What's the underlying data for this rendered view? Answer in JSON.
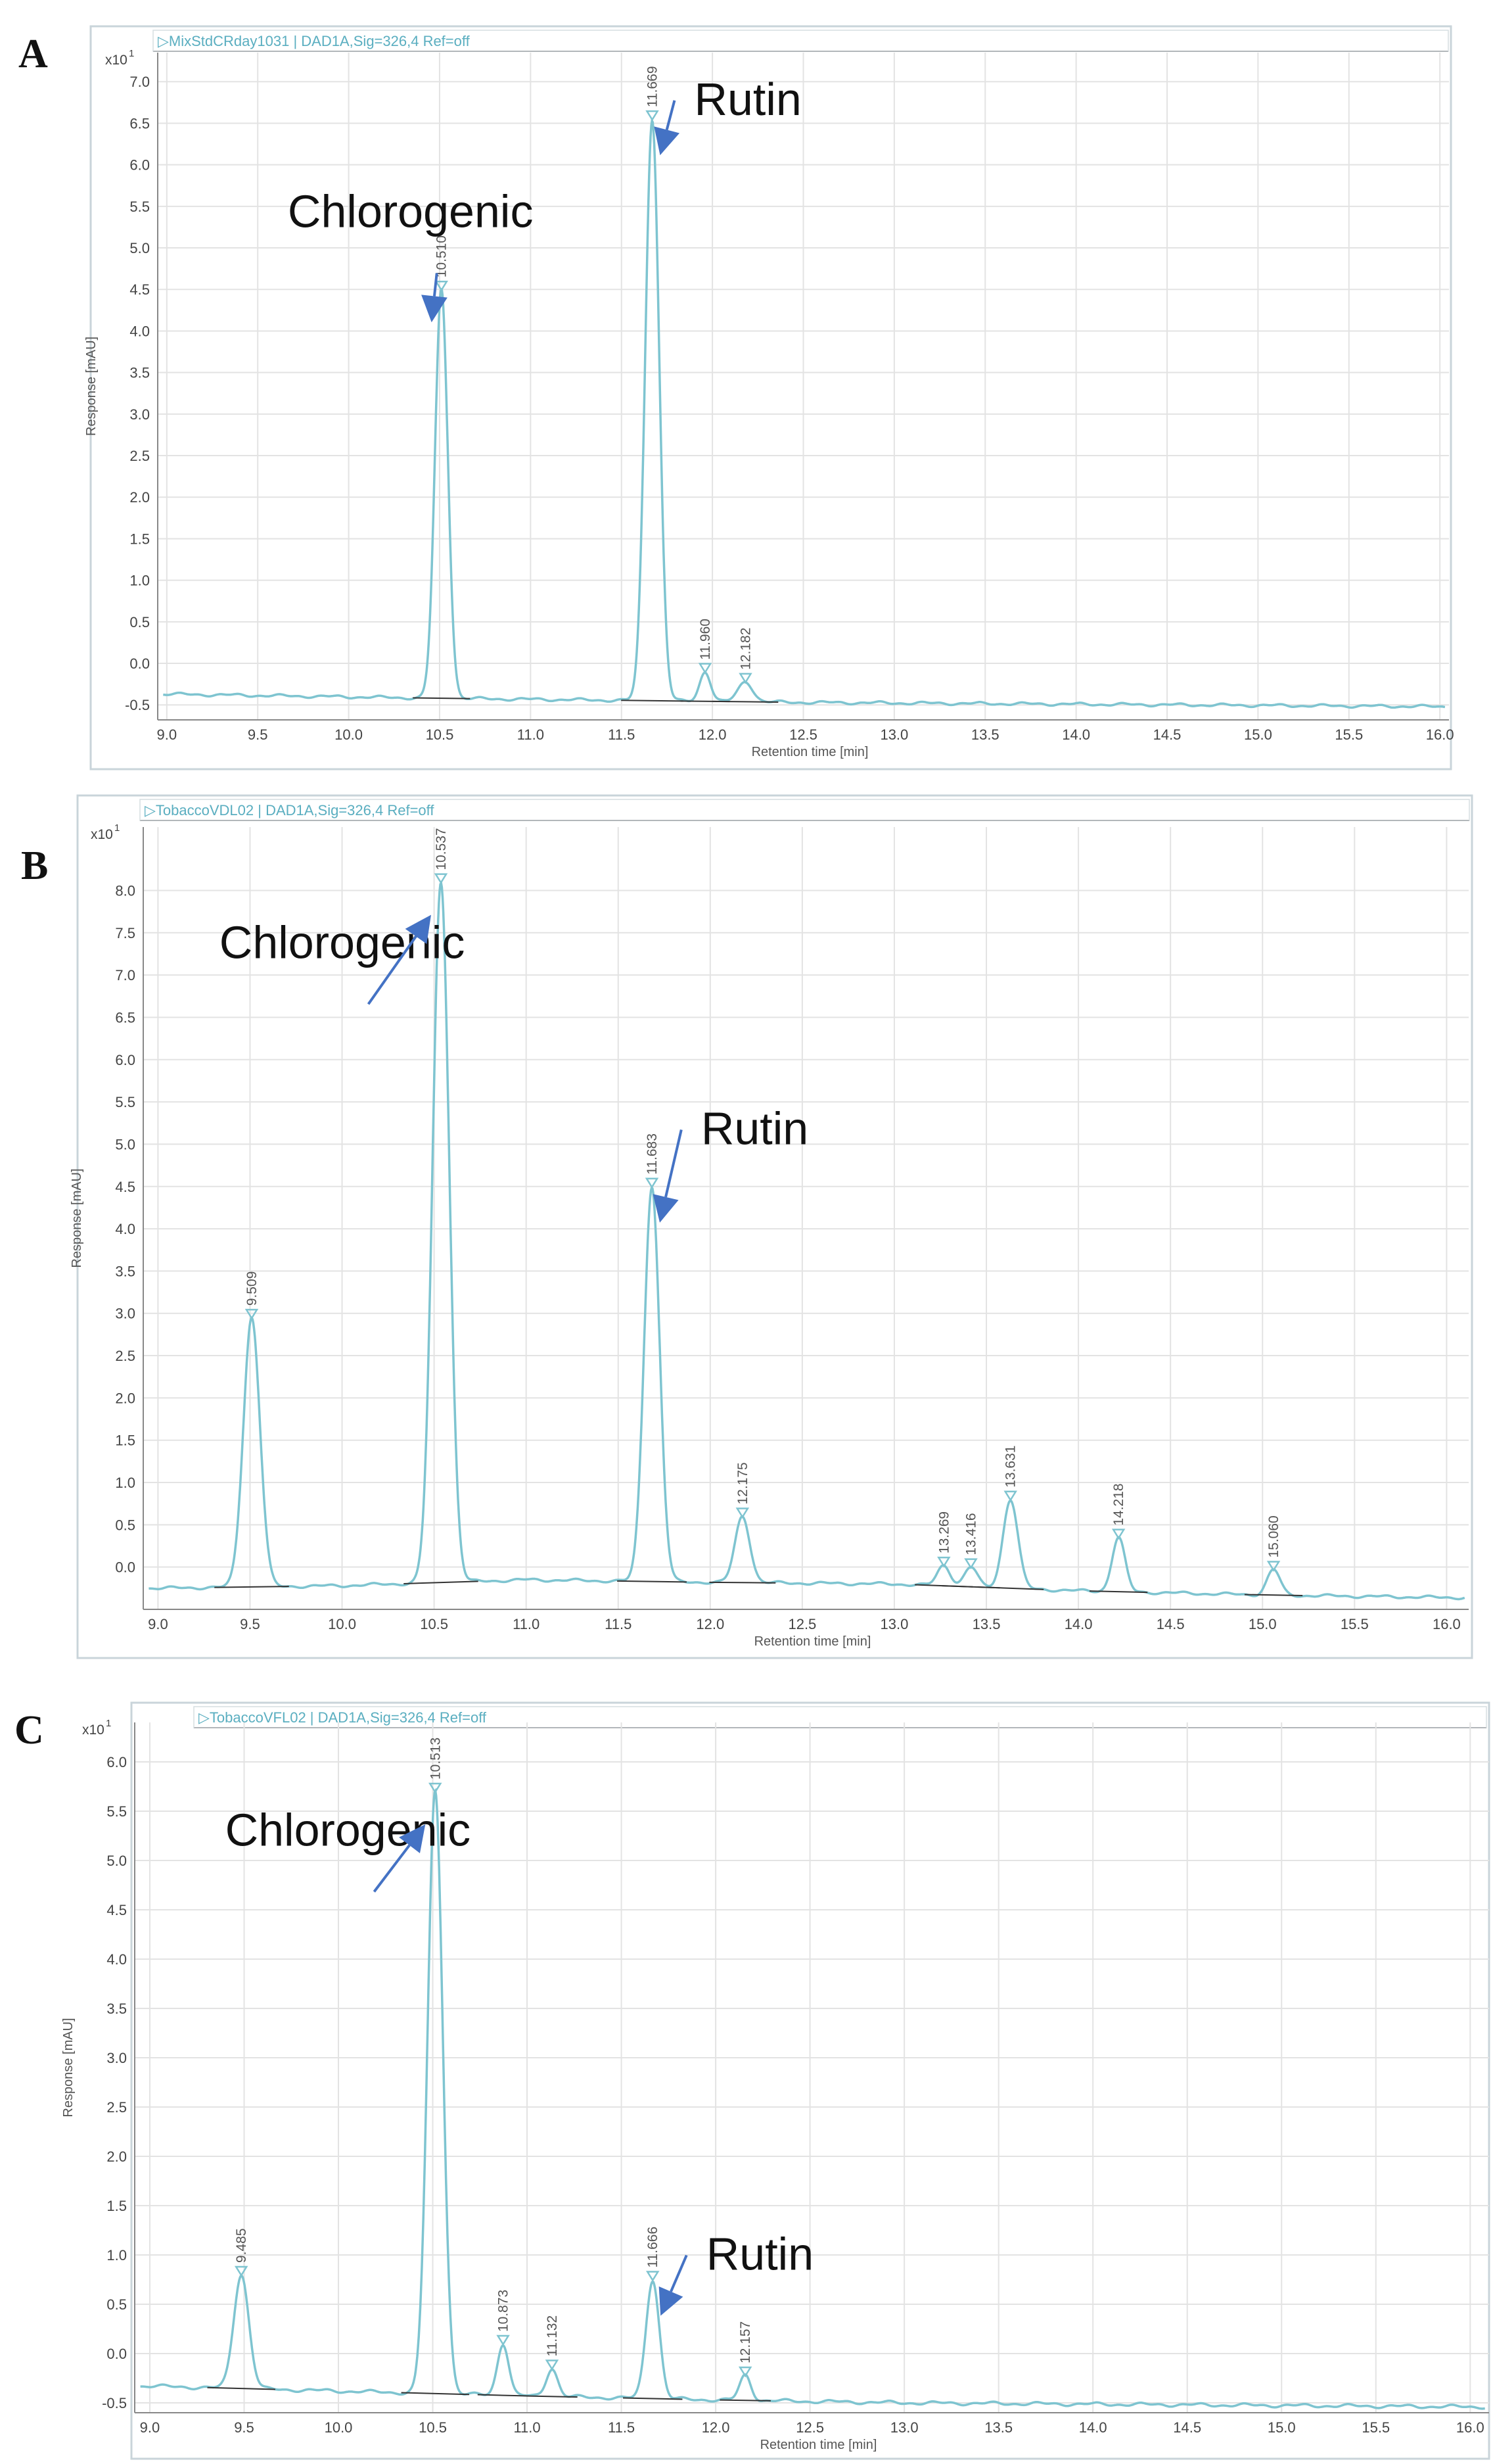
{
  "chart_data": [
    {
      "panel_label": "A",
      "type": "line",
      "header": "MixStdCRday1031 | DAD1A,Sig=326,4 Ref=off",
      "multiplier": "x10",
      "multiplier_exp": "1",
      "xlabel": "Retention time [min]",
      "ylabel": "Response [mAU]",
      "xlim": [
        8.95,
        16.05
      ],
      "ylim": [
        -0.68,
        7.35
      ],
      "xticks": [
        9.0,
        9.5,
        10.0,
        10.5,
        11.0,
        11.5,
        12.0,
        12.5,
        13.0,
        13.5,
        14.0,
        14.5,
        15.0,
        15.5,
        16.0
      ],
      "xtick_labels": [
        "9.0",
        "9.5",
        "10.0",
        "10.5",
        "11.0",
        "11.5",
        "12.0",
        "12.5",
        "13.0",
        "13.5",
        "14.0",
        "14.5",
        "15.0",
        "15.5",
        "16.0"
      ],
      "yticks": [
        -0.5,
        0.0,
        0.5,
        1.0,
        1.5,
        2.0,
        2.5,
        3.0,
        3.5,
        4.0,
        4.5,
        5.0,
        5.5,
        6.0,
        6.5,
        7.0
      ],
      "ytick_labels": [
        "-0.5",
        "0.0",
        "0.5",
        "1.0",
        "1.5",
        "2.0",
        "2.5",
        "3.0",
        "3.5",
        "4.0",
        "4.5",
        "5.0",
        "5.5",
        "6.0",
        "6.5",
        "7.0"
      ],
      "grid": true,
      "baseline": [
        [
          9.0,
          -0.37
        ],
        [
          10.5,
          -0.42
        ],
        [
          12.5,
          -0.47
        ],
        [
          16.0,
          -0.52
        ]
      ],
      "peaks": [
        {
          "x": 10.51,
          "y": 4.5,
          "w": 0.035,
          "label": "10.510"
        },
        {
          "x": 11.669,
          "y": 6.55,
          "w": 0.038,
          "label": "11.669"
        },
        {
          "x": 11.96,
          "y": -0.1,
          "w": 0.03,
          "label": "11.960"
        },
        {
          "x": 12.182,
          "y": -0.22,
          "w": 0.04,
          "label": "12.182"
        }
      ],
      "annotations": [
        {
          "text": "Chlorogenic",
          "x": 10.34,
          "y": 5.25,
          "peak_index": 0
        },
        {
          "text": "Rutin",
          "x": 11.9,
          "y": 6.6,
          "peak_index": 1
        }
      ]
    },
    {
      "panel_label": "B",
      "type": "line",
      "header": "TobaccoVDL02 | DAD1A,Sig=326,4 Ref=off",
      "multiplier": "x10",
      "multiplier_exp": "1",
      "xlabel": "Retention time [min]",
      "ylabel": "Response [mAU]",
      "xlim": [
        8.92,
        16.12
      ],
      "ylim": [
        -0.5,
        8.75
      ],
      "xticks": [
        9.0,
        9.5,
        10.0,
        10.5,
        11.0,
        11.5,
        12.0,
        12.5,
        13.0,
        13.5,
        14.0,
        14.5,
        15.0,
        15.5,
        16.0
      ],
      "xtick_labels": [
        "9.0",
        "9.5",
        "10.0",
        "10.5",
        "11.0",
        "11.5",
        "12.0",
        "12.5",
        "13.0",
        "13.5",
        "14.0",
        "14.5",
        "15.0",
        "15.5",
        "16.0"
      ],
      "yticks": [
        0.0,
        0.5,
        1.0,
        1.5,
        2.0,
        2.5,
        3.0,
        3.5,
        4.0,
        4.5,
        5.0,
        5.5,
        6.0,
        6.5,
        7.0,
        7.5,
        8.0
      ],
      "ytick_labels": [
        "0.0",
        "0.5",
        "1.0",
        "1.5",
        "2.0",
        "2.5",
        "3.0",
        "3.5",
        "4.0",
        "4.5",
        "5.0",
        "5.5",
        "6.0",
        "6.5",
        "7.0",
        "7.5",
        "8.0"
      ],
      "grid": true,
      "baseline": [
        [
          9.0,
          -0.25
        ],
        [
          10.0,
          -0.22
        ],
        [
          11.0,
          -0.15
        ],
        [
          12.0,
          -0.18
        ],
        [
          13.0,
          -0.2
        ],
        [
          14.0,
          -0.28
        ],
        [
          15.0,
          -0.33
        ],
        [
          16.0,
          -0.36
        ]
      ],
      "peaks": [
        {
          "x": 9.509,
          "y": 2.95,
          "w": 0.045,
          "label": "9.509"
        },
        {
          "x": 10.537,
          "y": 8.1,
          "w": 0.045,
          "label": "10.537"
        },
        {
          "x": 11.683,
          "y": 4.5,
          "w": 0.042,
          "label": "11.683"
        },
        {
          "x": 12.175,
          "y": 0.6,
          "w": 0.04,
          "label": "12.175"
        },
        {
          "x": 13.269,
          "y": 0.02,
          "w": 0.035,
          "label": "13.269"
        },
        {
          "x": 13.416,
          "y": 0.0,
          "w": 0.035,
          "label": "13.416"
        },
        {
          "x": 13.631,
          "y": 0.8,
          "w": 0.04,
          "label": "13.631"
        },
        {
          "x": 14.218,
          "y": 0.35,
          "w": 0.035,
          "label": "14.218"
        },
        {
          "x": 15.06,
          "y": -0.03,
          "w": 0.035,
          "label": "15.060"
        }
      ],
      "annotations": [
        {
          "text": "Chlorogenic",
          "x": 10.0,
          "y": 7.2,
          "peak_index": 1
        },
        {
          "text": "Rutin",
          "x": 11.95,
          "y": 5.0,
          "peak_index": 2
        }
      ]
    },
    {
      "panel_label": "C",
      "type": "line",
      "header": "TobaccoVFL02 | DAD1A,Sig=326,4 Ref=off",
      "multiplier": "x10",
      "multiplier_exp": "1",
      "xlabel": "Retention time [min]",
      "ylabel": "Response [mAU]",
      "xlim": [
        8.92,
        16.1
      ],
      "ylim": [
        -0.6,
        6.4
      ],
      "xticks": [
        9.0,
        9.5,
        10.0,
        10.5,
        11.0,
        11.5,
        12.0,
        12.5,
        13.0,
        13.5,
        14.0,
        14.5,
        15.0,
        15.5,
        16.0
      ],
      "xtick_labels": [
        "9.0",
        "9.5",
        "10.0",
        "10.5",
        "11.0",
        "11.5",
        "12.0",
        "12.5",
        "13.0",
        "13.5",
        "14.0",
        "14.5",
        "15.0",
        "15.5",
        "16.0"
      ],
      "yticks": [
        -0.5,
        0.0,
        0.5,
        1.0,
        1.5,
        2.0,
        2.5,
        3.0,
        3.5,
        4.0,
        4.5,
        5.0,
        5.5,
        6.0
      ],
      "ytick_labels": [
        "-0.5",
        "0.0",
        "0.5",
        "1.0",
        "1.5",
        "2.0",
        "2.5",
        "3.0",
        "3.5",
        "4.0",
        "4.5",
        "5.0",
        "5.5",
        "6.0"
      ],
      "grid": true,
      "baseline": [
        [
          9.0,
          -0.33
        ],
        [
          10.0,
          -0.38
        ],
        [
          11.0,
          -0.43
        ],
        [
          12.0,
          -0.47
        ],
        [
          13.0,
          -0.5
        ],
        [
          16.0,
          -0.54
        ]
      ],
      "peaks": [
        {
          "x": 9.485,
          "y": 0.8,
          "w": 0.04,
          "label": "9.485"
        },
        {
          "x": 10.513,
          "y": 5.7,
          "w": 0.04,
          "label": "10.513"
        },
        {
          "x": 10.873,
          "y": 0.1,
          "w": 0.03,
          "label": "10.873"
        },
        {
          "x": 11.132,
          "y": -0.15,
          "w": 0.03,
          "label": "11.132"
        },
        {
          "x": 11.666,
          "y": 0.75,
          "w": 0.035,
          "label": "11.666"
        },
        {
          "x": 12.157,
          "y": -0.22,
          "w": 0.03,
          "label": "12.157"
        }
      ],
      "annotations": [
        {
          "text": "Chlorogenic",
          "x": 10.05,
          "y": 5.15,
          "peak_index": 1
        },
        {
          "text": "Rutin",
          "x": 11.95,
          "y": 0.85,
          "peak_index": 4
        }
      ]
    }
  ]
}
